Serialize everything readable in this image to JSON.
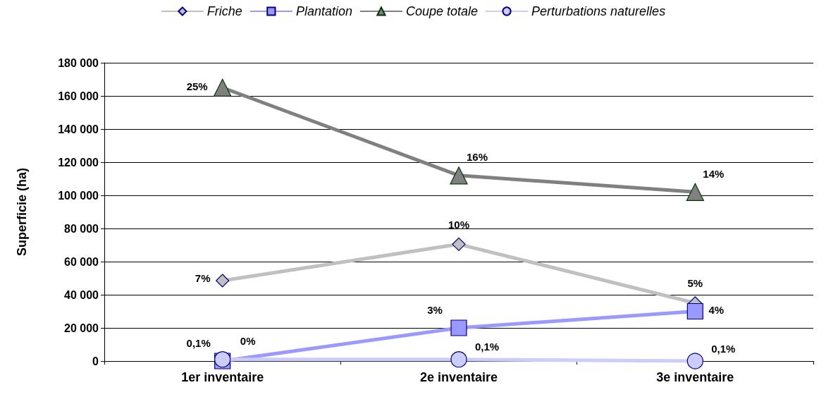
{
  "chart_data": {
    "type": "line",
    "ylabel": "Superficie (ha)",
    "categories": [
      "1er inventaire",
      "2e inventaire",
      "3e inventaire"
    ],
    "series": [
      {
        "name": "Friche",
        "color": "#c0c0c0",
        "marker": "diamond",
        "values": [
          48500,
          70500,
          35000
        ]
      },
      {
        "name": "Plantation",
        "color": "#9999ff",
        "marker": "square",
        "values": [
          0,
          20000,
          30000
        ]
      },
      {
        "name": "Coupe totale",
        "color": "#808080",
        "marker": "triangle",
        "values": [
          165000,
          112000,
          102000
        ]
      },
      {
        "name": "Perturbations naturelles",
        "color": "#ccccff",
        "marker": "circle",
        "values": [
          1000,
          1000,
          0
        ]
      }
    ],
    "annotations": [
      {
        "text": "7%",
        "x": "1er inventaire",
        "y": 48500
      },
      {
        "text": "10%",
        "x": "2e inventaire",
        "y": 70500
      },
      {
        "text": "5%",
        "x": "3e inventaire",
        "y": 35000
      },
      {
        "text": "0,1%",
        "x": "1er inventaire",
        "y": 0
      },
      {
        "text": "3%",
        "x": "2e inventaire",
        "y": 20000
      },
      {
        "text": "4%",
        "x": "3e inventaire",
        "y": 30000
      },
      {
        "text": "25%",
        "x": "1er inventaire",
        "y": 165000
      },
      {
        "text": "16%",
        "x": "2e inventaire",
        "y": 112000
      },
      {
        "text": "14%",
        "x": "3e inventaire",
        "y": 102000
      },
      {
        "text": "0%",
        "x": "1er inventaire",
        "y": 1000
      },
      {
        "text": "0,1%",
        "x": "2e inventaire",
        "y": 1000
      },
      {
        "text": "0,1%",
        "x": "3e inventaire",
        "y": 0
      }
    ],
    "ylim": [
      0,
      180000
    ],
    "yticks": [
      0,
      20000,
      40000,
      60000,
      80000,
      100000,
      120000,
      140000,
      160000,
      180000
    ],
    "grid": "y",
    "legend": "top",
    "line_style": "solid"
  }
}
